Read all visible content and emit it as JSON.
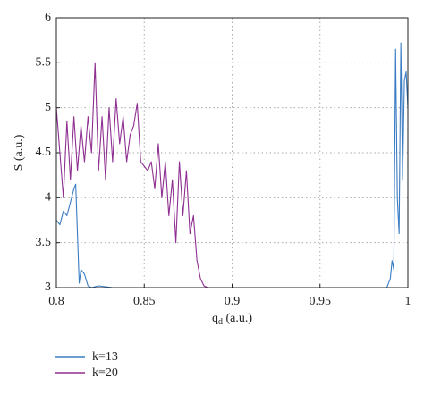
{
  "chart_data": {
    "type": "line",
    "xlabel": [
      "q",
      "d",
      " (a.u.)"
    ],
    "ylabel": "S (a.u.)",
    "xlim": [
      0.8,
      1
    ],
    "ylim": [
      3,
      6
    ],
    "xticks": [
      0.8,
      0.85,
      0.9,
      0.95,
      1
    ],
    "yticks": [
      3,
      3.5,
      4,
      4.5,
      5,
      5.5,
      6
    ],
    "grid": true,
    "legend": "bottom-left",
    "series": [
      {
        "name": "k=13",
        "color": "#3a7cc3",
        "x": [
          0.8,
          0.802,
          0.804,
          0.806,
          0.808,
          0.81,
          0.811,
          0.812,
          0.813,
          0.814,
          0.816,
          0.818,
          0.82,
          0.824,
          0.828,
          0.832,
          0.9,
          0.95,
          0.988,
          0.99,
          0.991,
          0.992,
          0.993,
          0.994,
          0.995,
          0.996,
          0.997,
          0.998,
          0.999,
          1
        ],
        "values": [
          3.75,
          3.7,
          3.85,
          3.8,
          3.95,
          4.1,
          4.15,
          3.6,
          3.05,
          3.2,
          3.15,
          3.02,
          3.0,
          3.02,
          3.01,
          3.0,
          3.0,
          3.0,
          3.0,
          3.1,
          3.3,
          3.2,
          5.65,
          4.0,
          3.6,
          5.72,
          4.2,
          5.3,
          5.4,
          5.0
        ]
      },
      {
        "name": "k=20",
        "color": "#8e2f91",
        "x": [
          0.8,
          0.802,
          0.804,
          0.806,
          0.808,
          0.81,
          0.812,
          0.814,
          0.816,
          0.818,
          0.82,
          0.822,
          0.824,
          0.826,
          0.828,
          0.83,
          0.832,
          0.834,
          0.836,
          0.838,
          0.84,
          0.842,
          0.844,
          0.846,
          0.848,
          0.85,
          0.852,
          0.854,
          0.856,
          0.858,
          0.86,
          0.862,
          0.864,
          0.866,
          0.868,
          0.87,
          0.872,
          0.874,
          0.876,
          0.878,
          0.88,
          0.882,
          0.884,
          0.886,
          0.9,
          0.95,
          0.99,
          1
        ],
        "values": [
          5.0,
          4.5,
          4.0,
          4.85,
          4.2,
          4.9,
          4.3,
          4.8,
          4.4,
          4.9,
          4.5,
          5.5,
          4.3,
          4.9,
          4.2,
          5.0,
          4.4,
          5.1,
          4.6,
          4.9,
          4.4,
          4.7,
          4.8,
          5.05,
          4.4,
          4.35,
          4.3,
          4.4,
          4.1,
          4.6,
          4.0,
          4.4,
          3.8,
          4.2,
          3.5,
          4.4,
          3.8,
          4.3,
          3.6,
          3.8,
          3.3,
          3.1,
          3.02,
          3.0,
          3.0,
          3.0,
          3.0,
          3.0
        ]
      }
    ]
  }
}
